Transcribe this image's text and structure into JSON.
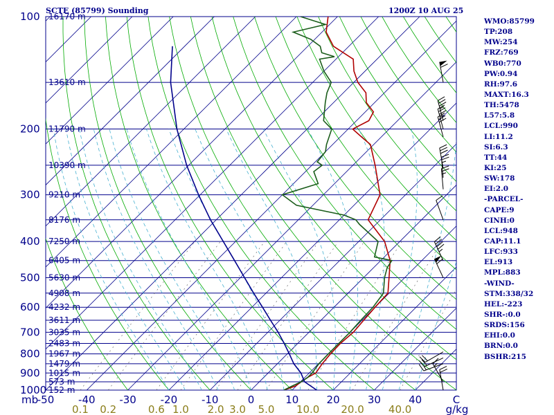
{
  "header": {
    "station_title": "SCTE (85799) Sounding",
    "valid_time": "1200Z 10 AUG 25"
  },
  "indices": [
    "WMO:85799",
    "TP:208",
    "MW:254",
    "FRZ:769",
    "WB0:770",
    "PW:0.94",
    "RH:97.6",
    "MAXT:16.3",
    "TH:5478",
    "L57:5.8",
    "LCL:990",
    "LI:11.2",
    "SI:6.3",
    "TT:44",
    "KI:25",
    "SW:178",
    "EI:2.0",
    "-PARCEL-",
    "CAPE:9",
    "CINH:0",
    "LCL:948",
    "CAP:11.1",
    "LFC:933",
    "EL:913",
    "MPL:883",
    "-WIND-",
    "STM:338/32",
    "HEL:-223",
    "SHR-:0.0",
    "SRDS:156",
    "EHI:0.0",
    "BRN:0.0",
    "BSHR:215"
  ],
  "colors": {
    "isobar": "#00008b",
    "isotherm": "#00008b",
    "dry_adiabat": "#00aa00",
    "moist_adiabat": "#45b0d0",
    "mixing_ratio": "#555555",
    "temperature": "#b00000",
    "dewpoint": "#1a5c1a",
    "parcel": "#00008b",
    "wind": "#000000"
  },
  "chart_data": {
    "type": "skew-t log-p sounding",
    "pressure_axis": {
      "scale": "log",
      "range_hpa": [
        1000,
        100
      ],
      "ticks": [
        "100",
        "200",
        "300",
        "400",
        "500",
        "600",
        "700",
        "800",
        "900",
        "1000"
      ],
      "unit": "mb"
    },
    "temperature_axis": {
      "range_c_at_1000": [
        -50,
        50
      ],
      "skewed": true,
      "ticks": [
        "-50",
        "-40",
        "-30",
        "-20",
        "-10",
        "0",
        "10",
        "20",
        "30",
        "40"
      ],
      "unit": "C"
    },
    "mixing_ratio_labels": [
      "0.1",
      "0.2",
      "0.6",
      "1.0",
      "2.0",
      "3.0",
      "5.0",
      "10.0",
      "20.0",
      "40.0"
    ],
    "mixing_ratio_unit": "g/kg",
    "height_labels": [
      {
        "p": 100,
        "label": "16170 m"
      },
      {
        "p": 150,
        "label": "13610 m"
      },
      {
        "p": 200,
        "label": "11790 m"
      },
      {
        "p": 250,
        "label": "10390 m"
      },
      {
        "p": 300,
        "label": "9210 m"
      },
      {
        "p": 350,
        "label": "8176 m"
      },
      {
        "p": 400,
        "label": "7250 m"
      },
      {
        "p": 450,
        "label": "6405 m"
      },
      {
        "p": 500,
        "label": "5630 m"
      },
      {
        "p": 550,
        "label": "4908 m"
      },
      {
        "p": 600,
        "label": "4232 m"
      },
      {
        "p": 650,
        "label": "3611 m"
      },
      {
        "p": 700,
        "label": "3035 m"
      },
      {
        "p": 750,
        "label": "2483 m"
      },
      {
        "p": 800,
        "label": "1967 m"
      },
      {
        "p": 850,
        "label": "1479 m"
      },
      {
        "p": 900,
        "label": "1015 m"
      },
      {
        "p": 950,
        "label": "573 m"
      },
      {
        "p": 1000,
        "label": "152 m"
      }
    ],
    "series": [
      {
        "key": "temperature",
        "points": [
          [
            1000,
            8.0
          ],
          [
            975,
            9.8
          ],
          [
            950,
            10.2
          ],
          [
            925,
            10.7
          ],
          [
            900,
            11.6
          ],
          [
            850,
            10.9
          ],
          [
            800,
            10.5
          ],
          [
            750,
            10.4
          ],
          [
            700,
            10.8
          ],
          [
            650,
            10.4
          ],
          [
            600,
            10.0
          ],
          [
            550,
            9.7
          ],
          [
            500,
            6.2
          ],
          [
            450,
            2.3
          ],
          [
            400,
            -3.7
          ],
          [
            350,
            -13.0
          ],
          [
            300,
            -16.2
          ],
          [
            250,
            -24.6
          ],
          [
            220,
            -30.8
          ],
          [
            210,
            -34.8
          ],
          [
            200,
            -38.9
          ],
          [
            190,
            -37.0
          ],
          [
            180,
            -38.0
          ],
          [
            170,
            -42.0
          ],
          [
            160,
            -44.5
          ],
          [
            150,
            -49.0
          ],
          [
            140,
            -52.7
          ],
          [
            130,
            -55.8
          ],
          [
            120,
            -63.8
          ],
          [
            110,
            -69.0
          ],
          [
            100,
            -72.3
          ]
        ]
      },
      {
        "key": "dewpoint",
        "points": [
          [
            1000,
            8.0
          ],
          [
            975,
            9.0
          ],
          [
            950,
            10.2
          ],
          [
            925,
            10.7
          ],
          [
            900,
            10.7
          ],
          [
            850,
            10.1
          ],
          [
            800,
            10.0
          ],
          [
            750,
            10.0
          ],
          [
            700,
            10.0
          ],
          [
            650,
            9.7
          ],
          [
            600,
            9.5
          ],
          [
            550,
            8.6
          ],
          [
            500,
            5.1
          ],
          [
            470,
            3.3
          ],
          [
            450,
            2.7
          ],
          [
            440,
            -2.4
          ],
          [
            400,
            -5.3
          ],
          [
            360,
            -14.0
          ],
          [
            350,
            -16.0
          ],
          [
            340,
            -20.0
          ],
          [
            320,
            -34.0
          ],
          [
            300,
            -40.0
          ],
          [
            280,
            -34.0
          ],
          [
            260,
            -38.0
          ],
          [
            250,
            -37.5
          ],
          [
            245,
            -39.5
          ],
          [
            230,
            -40.0
          ],
          [
            220,
            -41.5
          ],
          [
            200,
            -44.0
          ],
          [
            190,
            -48.0
          ],
          [
            170,
            -52.0
          ],
          [
            160,
            -54.0
          ],
          [
            150,
            -55.5
          ],
          [
            140,
            -60.0
          ],
          [
            130,
            -64.0
          ],
          [
            128,
            -61.0
          ],
          [
            125,
            -65.0
          ],
          [
            120,
            -67.0
          ],
          [
            115,
            -71.0
          ],
          [
            110,
            -77.0
          ],
          [
            105,
            -71.0
          ],
          [
            100,
            -79.0
          ]
        ]
      },
      {
        "key": "parcel",
        "points": [
          [
            1000,
            16.0
          ],
          [
            950,
            11.0
          ],
          [
            900,
            8.0
          ],
          [
            850,
            4.0
          ],
          [
            800,
            0.5
          ],
          [
            750,
            -3.3
          ],
          [
            700,
            -7.5
          ],
          [
            650,
            -12.3
          ],
          [
            600,
            -17.4
          ],
          [
            550,
            -23.0
          ],
          [
            500,
            -29.0
          ],
          [
            450,
            -35.6
          ],
          [
            400,
            -43.0
          ],
          [
            350,
            -51.4
          ],
          [
            300,
            -60.4
          ],
          [
            250,
            -70.5
          ],
          [
            200,
            -81.7
          ],
          [
            150,
            -94.6
          ],
          [
            120,
            -103.0
          ]
        ]
      }
    ],
    "wind_barbs": [
      {
        "p": 1000,
        "dir": 350,
        "spd": 20
      },
      {
        "p": 950,
        "dir": 330,
        "spd": 15
      },
      {
        "p": 850,
        "dir": 250,
        "spd": 15
      },
      {
        "p": 820,
        "dir": 245,
        "spd": 20
      },
      {
        "p": 790,
        "dir": 240,
        "spd": 20
      },
      {
        "p": 500,
        "dir": 335,
        "spd": 60
      },
      {
        "p": 450,
        "dir": 335,
        "spd": 45
      },
      {
        "p": 350,
        "dir": 340,
        "spd": 10
      },
      {
        "p": 290,
        "dir": 355,
        "spd": 25
      },
      {
        "p": 270,
        "dir": 355,
        "spd": 25
      },
      {
        "p": 255,
        "dir": 350,
        "spd": 30
      },
      {
        "p": 210,
        "dir": 345,
        "spd": 30
      },
      {
        "p": 200,
        "dir": 345,
        "spd": 35
      },
      {
        "p": 190,
        "dir": 345,
        "spd": 35
      },
      {
        "p": 150,
        "dir": 350,
        "spd": 60
      }
    ]
  }
}
